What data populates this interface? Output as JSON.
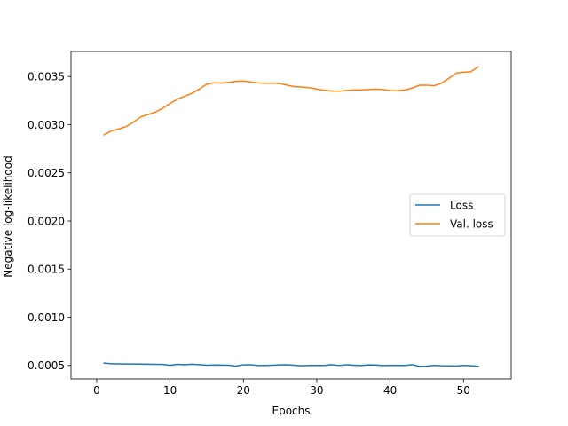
{
  "chart_data": {
    "type": "line",
    "title": "",
    "xlabel": "Epochs",
    "ylabel": "Negative log-likelihood",
    "xlim": [
      -3.5,
      56.5
    ],
    "ylim": [
      0.00036,
      0.00376
    ],
    "xticks": [
      0,
      10,
      20,
      30,
      40,
      50
    ],
    "yticks": [
      0.0005,
      0.001,
      0.0015,
      0.002,
      0.0025,
      0.003,
      0.0035
    ],
    "ytick_labels": [
      "0.0005",
      "0.0010",
      "0.0015",
      "0.0020",
      "0.0025",
      "0.0030",
      "0.0035"
    ],
    "grid": false,
    "legend_position": "center-right",
    "x": [
      1,
      2,
      3,
      4,
      5,
      6,
      7,
      8,
      9,
      10,
      11,
      12,
      13,
      14,
      15,
      16,
      17,
      18,
      19,
      20,
      21,
      22,
      23,
      24,
      25,
      26,
      27,
      28,
      29,
      30,
      31,
      32,
      33,
      34,
      35,
      36,
      37,
      38,
      39,
      40,
      41,
      42,
      43,
      44,
      45,
      46,
      47,
      48,
      49,
      50,
      51,
      52
    ],
    "series": [
      {
        "name": "Loss",
        "color": "#1f77b4",
        "values": [
          0.000525,
          0.000518,
          0.000517,
          0.000516,
          0.000515,
          0.000514,
          0.000513,
          0.000512,
          0.000511,
          0.000502,
          0.000512,
          0.000508,
          0.000513,
          0.000509,
          0.000503,
          0.000505,
          0.000504,
          0.000503,
          0.000494,
          0.000508,
          0.000508,
          0.000499,
          0.000501,
          0.000503,
          0.000506,
          0.000507,
          0.000502,
          0.000497,
          0.000501,
          0.000501,
          0.000501,
          0.000509,
          0.0005,
          0.000508,
          0.000503,
          0.000499,
          0.000506,
          0.000505,
          0.000499,
          0.000502,
          0.0005,
          0.0005,
          0.000509,
          0.00049,
          0.000494,
          0.000501,
          0.000497,
          0.000496,
          0.000495,
          0.000501,
          0.000497,
          0.000492
        ]
      },
      {
        "name": "Val. loss",
        "color": "#ff7f0e",
        "values": [
          0.002895,
          0.002935,
          0.002955,
          0.00298,
          0.003025,
          0.00308,
          0.003105,
          0.00313,
          0.00317,
          0.00322,
          0.003265,
          0.003295,
          0.003325,
          0.00337,
          0.00342,
          0.003435,
          0.003432,
          0.00344,
          0.00345,
          0.003452,
          0.003444,
          0.003433,
          0.00343,
          0.003432,
          0.003427,
          0.00341,
          0.003395,
          0.00339,
          0.003385,
          0.00337,
          0.003358,
          0.00335,
          0.003348,
          0.003355,
          0.00336,
          0.00336,
          0.003365,
          0.00337,
          0.003365,
          0.003355,
          0.003352,
          0.00336,
          0.00338,
          0.00341,
          0.00341,
          0.003405,
          0.00343,
          0.00348,
          0.003535,
          0.003545,
          0.00355,
          0.0036
        ]
      }
    ]
  }
}
